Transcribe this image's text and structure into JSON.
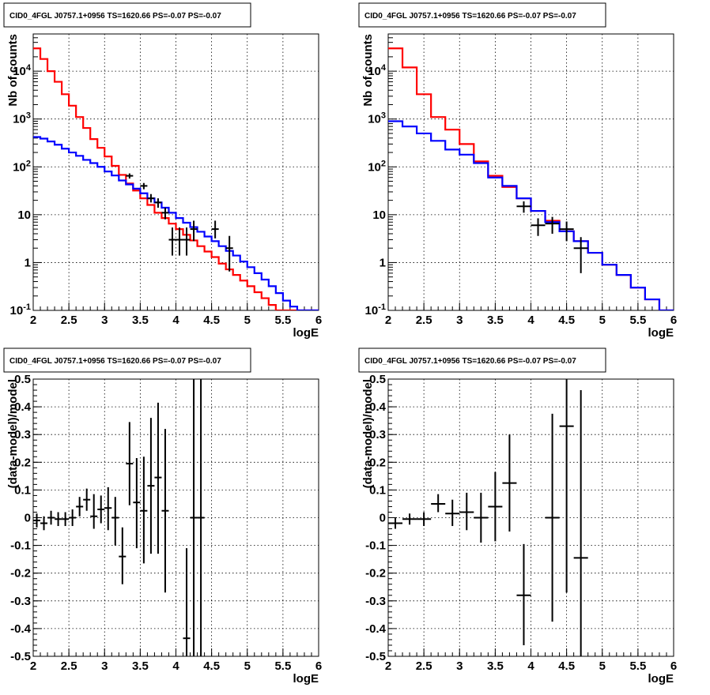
{
  "chart_data": [
    {
      "type": "step-histogram",
      "title": "CID0_4FGL J0757.1+0956 TS=1620.66 PS=-0.07 PS=-0.07",
      "xlabel": "logE",
      "ylabel": "Nb of counts",
      "xlim": [
        2,
        6
      ],
      "ylim": [
        0.1,
        60000
      ],
      "yscale": "log",
      "grid": true,
      "x_ticks": [
        2,
        2.5,
        3,
        3.5,
        4,
        4.5,
        5,
        5.5,
        6
      ],
      "x_tick_labels": [
        "2",
        "2.5",
        "3",
        "3.5",
        "4",
        "4.5",
        "5",
        "5.5",
        "6"
      ],
      "y_ticks": [
        0.1,
        1,
        10,
        100,
        1000,
        10000
      ],
      "y_tick_labels": [
        "10^-1",
        "1",
        "10",
        "10^2",
        "10^3",
        "10^4"
      ],
      "bin_edges": [
        2.0,
        2.1,
        2.2,
        2.3,
        2.4,
        2.5,
        2.6,
        2.7,
        2.8,
        2.9,
        3.0,
        3.1,
        3.2,
        3.3,
        3.4,
        3.5,
        3.6,
        3.7,
        3.8,
        3.9,
        4.0,
        4.1,
        4.2,
        4.3,
        4.4,
        4.5,
        4.6,
        4.7,
        4.8,
        4.9,
        5.0,
        5.1,
        5.2,
        5.3,
        5.4,
        5.5,
        5.6,
        5.7,
        5.8,
        5.9,
        6.0
      ],
      "series": [
        {
          "color": "#ff0000",
          "values": [
            30000,
            18000,
            10000,
            6000,
            3300,
            1900,
            1100,
            650,
            380,
            250,
            165,
            105,
            68,
            45,
            32,
            22,
            16,
            11,
            8.5,
            6.5,
            5.0,
            3.8,
            2.9,
            2.2,
            1.7,
            1.3,
            0.95,
            0.72,
            0.55,
            0.42,
            0.32,
            0.24,
            0.18,
            0.13,
            0.1,
            0.08,
            0.07,
            0.07,
            0.07,
            0.07
          ]
        },
        {
          "color": "#0000ff",
          "values": [
            420,
            390,
            340,
            290,
            240,
            200,
            170,
            140,
            120,
            100,
            80,
            66,
            52,
            43,
            35,
            28,
            22,
            18,
            14,
            11,
            8.5,
            6.8,
            5.5,
            4.4,
            3.5,
            2.8,
            2.2,
            1.75,
            1.4,
            1.05,
            0.8,
            0.6,
            0.44,
            0.32,
            0.23,
            0.16,
            0.12,
            0.1,
            0.1,
            0.1
          ]
        }
      ],
      "points": [
        {
          "x": 3.35,
          "xerr": 0.05,
          "y": 65,
          "ylo": 57,
          "yhi": 73
        },
        {
          "x": 3.55,
          "xerr": 0.05,
          "y": 40,
          "ylo": 34,
          "yhi": 46
        },
        {
          "x": 3.65,
          "xerr": 0.05,
          "y": 22,
          "ylo": 18,
          "yhi": 27
        },
        {
          "x": 3.75,
          "xerr": 0.05,
          "y": 18,
          "ylo": 14,
          "yhi": 22
        },
        {
          "x": 3.85,
          "xerr": 0.05,
          "y": 11,
          "ylo": 8,
          "yhi": 14
        },
        {
          "x": 3.95,
          "xerr": 0.05,
          "y": 3,
          "ylo": 1.4,
          "yhi": 5.4
        },
        {
          "x": 4.05,
          "xerr": 0.05,
          "y": 3,
          "ylo": 1.4,
          "yhi": 5.4
        },
        {
          "x": 4.15,
          "xerr": 0.05,
          "y": 3,
          "ylo": 1.4,
          "yhi": 5.4
        },
        {
          "x": 4.25,
          "xerr": 0.05,
          "y": 5,
          "ylo": 2.8,
          "yhi": 7.5
        },
        {
          "x": 4.55,
          "xerr": 0.05,
          "y": 5,
          "ylo": 3.2,
          "yhi": 7.5
        },
        {
          "x": 4.75,
          "xerr": 0.05,
          "y": 2,
          "ylo": 0.65,
          "yhi": 3.6
        }
      ]
    },
    {
      "type": "step-histogram",
      "title": "CID0_4FGL J0757.1+0956 TS=1620.66 PS=-0.07 PS=-0.07",
      "xlabel": "logE",
      "ylabel": "Nb of counts",
      "xlim": [
        2,
        6
      ],
      "ylim": [
        0.1,
        60000
      ],
      "yscale": "log",
      "grid": true,
      "x_ticks": [
        2,
        2.5,
        3,
        3.5,
        4,
        4.5,
        5,
        5.5,
        6
      ],
      "x_tick_labels": [
        "2",
        "2.5",
        "3",
        "3.5",
        "4",
        "4.5",
        "5",
        "5.5",
        "6"
      ],
      "y_ticks": [
        0.1,
        1,
        10,
        100,
        1000,
        10000
      ],
      "y_tick_labels": [
        "10^-1",
        "1",
        "10",
        "10^2",
        "10^3",
        "10^4"
      ],
      "bin_edges": [
        2.0,
        2.2,
        2.4,
        2.6,
        2.8,
        3.0,
        3.2,
        3.4,
        3.6,
        3.8,
        4.0,
        4.2,
        4.4,
        4.6,
        4.8,
        5.0,
        5.2,
        5.4,
        5.6,
        5.8,
        6.0
      ],
      "series": [
        {
          "color": "#ff0000",
          "values": [
            30000,
            12000,
            3300,
            1100,
            600,
            300,
            130,
            65,
            38,
            22,
            12,
            7.5,
            4.5,
            2.8,
            1.6,
            0.9,
            0.55,
            0.3,
            0.17,
            0.1
          ]
        },
        {
          "color": "#0000ff",
          "values": [
            900,
            700,
            500,
            350,
            230,
            180,
            120,
            60,
            40,
            22,
            12,
            7,
            4.5,
            2.8,
            1.6,
            0.9,
            0.55,
            0.3,
            0.17,
            0.1
          ]
        }
      ],
      "points": [
        {
          "x": 3.9,
          "xerr": 0.1,
          "y": 15,
          "ylo": 11,
          "yhi": 19
        },
        {
          "x": 4.1,
          "xerr": 0.1,
          "y": 6,
          "ylo": 3.6,
          "yhi": 8.4
        },
        {
          "x": 4.3,
          "xerr": 0.1,
          "y": 6.5,
          "ylo": 4.0,
          "yhi": 9.0
        },
        {
          "x": 4.5,
          "xerr": 0.1,
          "y": 5,
          "ylo": 2.8,
          "yhi": 7.2
        },
        {
          "x": 4.7,
          "xerr": 0.1,
          "y": 2,
          "ylo": 0.6,
          "yhi": 3.4
        }
      ]
    },
    {
      "type": "scatter-errorbars",
      "title": "CID0_4FGL J0757.1+0956 TS=1620.66 PS=-0.07 PS=-0.07",
      "xlabel": "logE",
      "ylabel": "(data-model)/model",
      "xlim": [
        2,
        6
      ],
      "ylim": [
        -0.5,
        0.5
      ],
      "grid": true,
      "x_ticks": [
        2,
        2.5,
        3,
        3.5,
        4,
        4.5,
        5,
        5.5,
        6
      ],
      "x_tick_labels": [
        "2",
        "2.5",
        "3",
        "3.5",
        "4",
        "4.5",
        "5",
        "5.5",
        "6"
      ],
      "y_ticks": [
        -0.5,
        -0.4,
        -0.3,
        -0.2,
        -0.1,
        0,
        0.1,
        0.2,
        0.3,
        0.4,
        0.5
      ],
      "y_tick_labels": [
        "-0.5",
        "-0.4",
        "-0.3",
        "-0.2",
        "-0.1",
        "0",
        "0.1",
        "0.2",
        "0.3",
        "0.4",
        "0.5"
      ],
      "points": [
        {
          "x": 2.05,
          "xerr": 0.05,
          "y": -0.01,
          "ylo": -0.035,
          "yhi": 0.015
        },
        {
          "x": 2.15,
          "xerr": 0.05,
          "y": -0.02,
          "ylo": -0.045,
          "yhi": 0.005
        },
        {
          "x": 2.25,
          "xerr": 0.05,
          "y": 0.0,
          "ylo": -0.025,
          "yhi": 0.025
        },
        {
          "x": 2.35,
          "xerr": 0.05,
          "y": -0.005,
          "ylo": -0.03,
          "yhi": 0.02
        },
        {
          "x": 2.45,
          "xerr": 0.05,
          "y": -0.005,
          "ylo": -0.03,
          "yhi": 0.02
        },
        {
          "x": 2.55,
          "xerr": 0.05,
          "y": 0.0,
          "ylo": -0.03,
          "yhi": 0.03
        },
        {
          "x": 2.65,
          "xerr": 0.05,
          "y": 0.04,
          "ylo": 0.005,
          "yhi": 0.075
        },
        {
          "x": 2.75,
          "xerr": 0.05,
          "y": 0.065,
          "ylo": 0.025,
          "yhi": 0.105
        },
        {
          "x": 2.85,
          "xerr": 0.05,
          "y": 0.005,
          "ylo": -0.04,
          "yhi": 0.085
        },
        {
          "x": 2.95,
          "xerr": 0.05,
          "y": 0.03,
          "ylo": -0.02,
          "yhi": 0.08
        },
        {
          "x": 3.05,
          "xerr": 0.05,
          "y": 0.035,
          "ylo": -0.045,
          "yhi": 0.11
        },
        {
          "x": 3.15,
          "xerr": 0.05,
          "y": 0.0,
          "ylo": -0.1,
          "yhi": 0.075
        },
        {
          "x": 3.25,
          "xerr": 0.05,
          "y": -0.14,
          "ylo": -0.24,
          "yhi": -0.035
        },
        {
          "x": 3.35,
          "xerr": 0.05,
          "y": 0.195,
          "ylo": 0.045,
          "yhi": 0.345
        },
        {
          "x": 3.45,
          "xerr": 0.05,
          "y": 0.055,
          "ylo": -0.11,
          "yhi": 0.215
        },
        {
          "x": 3.55,
          "xerr": 0.05,
          "y": 0.025,
          "ylo": -0.165,
          "yhi": 0.22
        },
        {
          "x": 3.65,
          "xerr": 0.05,
          "y": 0.115,
          "ylo": -0.13,
          "yhi": 0.36
        },
        {
          "x": 3.75,
          "xerr": 0.05,
          "y": 0.145,
          "ylo": -0.13,
          "yhi": 0.415
        },
        {
          "x": 3.85,
          "xerr": 0.05,
          "y": 0.025,
          "ylo": -0.27,
          "yhi": 0.32
        },
        {
          "x": 4.15,
          "xerr": 0.05,
          "y": -0.435,
          "ylo": -0.5,
          "yhi": -0.11
        },
        {
          "x": 4.25,
          "xerr": 0.05,
          "y": 0.0,
          "ylo": -0.5,
          "yhi": 0.5
        },
        {
          "x": 4.35,
          "xerr": 0.05,
          "y": 0.0,
          "ylo": -0.5,
          "yhi": 0.5
        }
      ]
    },
    {
      "type": "scatter-errorbars",
      "title": "CID0_4FGL J0757.1+0956 TS=1620.66 PS=-0.07 PS=-0.07",
      "xlabel": "logE",
      "ylabel": "(data-model)/model",
      "xlim": [
        2,
        6
      ],
      "ylim": [
        -0.5,
        0.5
      ],
      "grid": true,
      "x_ticks": [
        2,
        2.5,
        3,
        3.5,
        4,
        4.5,
        5,
        5.5,
        6
      ],
      "x_tick_labels": [
        "2",
        "2.5",
        "3",
        "3.5",
        "4",
        "4.5",
        "5",
        "5.5",
        "6"
      ],
      "y_ticks": [
        -0.5,
        -0.4,
        -0.3,
        -0.2,
        -0.1,
        0,
        0.1,
        0.2,
        0.3,
        0.4,
        0.5
      ],
      "y_tick_labels": [
        "-0.5",
        "-0.4",
        "-0.3",
        "-0.2",
        "-0.1",
        "0",
        "0.1",
        "0.2",
        "0.3",
        "0.4",
        "0.5"
      ],
      "points": [
        {
          "x": 2.1,
          "xerr": 0.1,
          "y": -0.02,
          "ylo": -0.04,
          "yhi": 0.0
        },
        {
          "x": 2.3,
          "xerr": 0.1,
          "y": -0.005,
          "ylo": -0.025,
          "yhi": 0.015
        },
        {
          "x": 2.5,
          "xerr": 0.1,
          "y": -0.005,
          "ylo": -0.03,
          "yhi": 0.02
        },
        {
          "x": 2.7,
          "xerr": 0.1,
          "y": 0.05,
          "ylo": 0.02,
          "yhi": 0.085
        },
        {
          "x": 2.9,
          "xerr": 0.1,
          "y": 0.015,
          "ylo": -0.03,
          "yhi": 0.065
        },
        {
          "x": 3.1,
          "xerr": 0.1,
          "y": 0.02,
          "ylo": -0.045,
          "yhi": 0.09
        },
        {
          "x": 3.3,
          "xerr": 0.1,
          "y": 0.0,
          "ylo": -0.09,
          "yhi": 0.09
        },
        {
          "x": 3.5,
          "xerr": 0.1,
          "y": 0.04,
          "ylo": -0.085,
          "yhi": 0.165
        },
        {
          "x": 3.7,
          "xerr": 0.1,
          "y": 0.125,
          "ylo": -0.05,
          "yhi": 0.3
        },
        {
          "x": 3.9,
          "xerr": 0.1,
          "y": -0.28,
          "ylo": -0.46,
          "yhi": -0.095
        },
        {
          "x": 4.3,
          "xerr": 0.1,
          "y": 0.0,
          "ylo": -0.375,
          "yhi": 0.375
        },
        {
          "x": 4.5,
          "xerr": 0.1,
          "y": 0.33,
          "ylo": -0.27,
          "yhi": 0.5
        },
        {
          "x": 4.7,
          "xerr": 0.1,
          "y": -0.145,
          "ylo": -0.5,
          "yhi": 0.46
        }
      ]
    }
  ]
}
